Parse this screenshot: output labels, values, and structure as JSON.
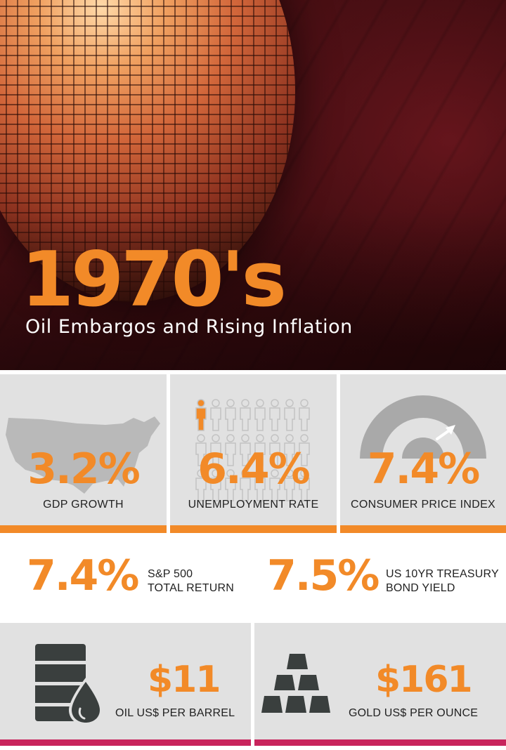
{
  "hero": {
    "title": "1970's",
    "subtitle": "Oil Embargos and Rising Inflation"
  },
  "stats": {
    "gdp": {
      "value": "3.2%",
      "label": "GDP GROWTH",
      "icon": "us-map-icon"
    },
    "unemployment": {
      "value": "6.4%",
      "label": "UNEMPLOYMENT RATE",
      "icon": "people-icon",
      "rate": 0.064
    },
    "cpi": {
      "value": "7.4%",
      "label": "CONSUMER PRICE INDEX",
      "icon": "gauge-icon"
    }
  },
  "returns": {
    "sp500": {
      "value": "7.4%",
      "label_line1": "S&P 500",
      "label_line2": "TOTAL RETURN"
    },
    "treasury": {
      "value": "7.5%",
      "label_line1": "US 10YR TREASURY",
      "label_line2": "BOND YIELD"
    }
  },
  "commodities": {
    "oil": {
      "value": "$11",
      "label": "OIL US$ PER BARREL",
      "icon": "oil-barrel-icon"
    },
    "gold": {
      "value": "$161",
      "label": "GOLD US$ PER OUNCE",
      "icon": "gold-bars-icon"
    }
  },
  "colors": {
    "accent": "#f28a28",
    "bottom_bar": "#c8245c",
    "tile_bg": "#e1e1e1"
  }
}
